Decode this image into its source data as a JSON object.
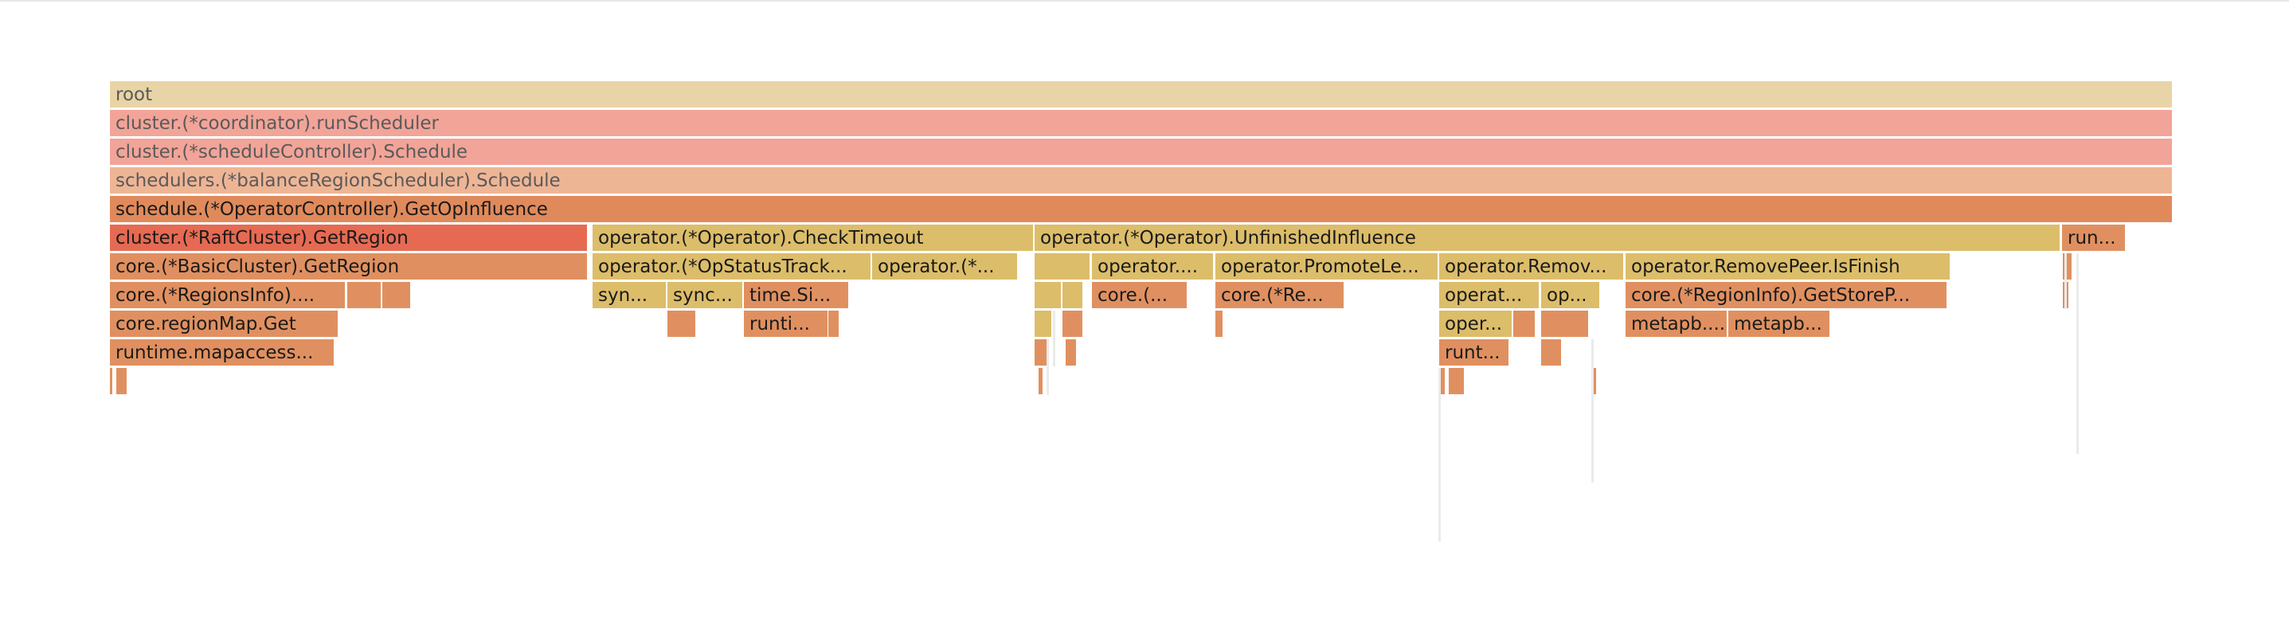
{
  "colors": {
    "root": "#e8d4a6",
    "salmon": "#f2a498",
    "peach": "#eeb595",
    "orange": "#e08a5c",
    "red": "#e66a52",
    "tan": "#e09060",
    "yellow": "#dcbd6a",
    "thin_line": "#ebebeb"
  },
  "flamegraph": {
    "frames": [
      {
        "label": "root",
        "color": "root",
        "dim": true
      },
      {
        "label": "cluster.(*coordinator).runScheduler",
        "color": "salmon",
        "dim": true
      },
      {
        "label": "cluster.(*scheduleController).Schedule",
        "color": "salmon",
        "dim": true
      },
      {
        "label": "schedulers.(*balanceRegionScheduler).Schedule",
        "color": "peach",
        "dim": true
      },
      {
        "label": "schedule.(*OperatorController).GetOpInfluence",
        "color": "orange"
      },
      {
        "label": "cluster.(*RaftCluster).GetRegion",
        "color": "red"
      },
      {
        "label": "operator.(*Operator).CheckTimeout",
        "color": "yellow"
      },
      {
        "label": "operator.(*Operator).UnfinishedInfluence",
        "color": "yellow"
      },
      {
        "label": "run...",
        "color": "tan"
      },
      {
        "label": "",
        "color": "tan"
      },
      {
        "label": "core.(*BasicCluster).GetRegion",
        "color": "tan"
      },
      {
        "label": "operator.(*OpStatusTrack...",
        "color": "yellow"
      },
      {
        "label": "operator.(*...",
        "color": "yellow"
      },
      {
        "label": "",
        "color": "yellow"
      },
      {
        "label": "operator....",
        "color": "yellow"
      },
      {
        "label": "operator.PromoteLe...",
        "color": "yellow"
      },
      {
        "label": "operator.Remov...",
        "color": "yellow"
      },
      {
        "label": "operator.RemovePeer.IsFinish",
        "color": "yellow"
      },
      {
        "label": "",
        "color": "tan"
      },
      {
        "label": "core.(*RegionsInfo)....",
        "color": "tan"
      },
      {
        "label": "",
        "color": "tan"
      },
      {
        "label": "",
        "color": "tan"
      },
      {
        "label": "syn...",
        "color": "yellow"
      },
      {
        "label": "sync...",
        "color": "yellow"
      },
      {
        "label": "time.Si...",
        "color": "tan"
      },
      {
        "label": "",
        "color": "yellow"
      },
      {
        "label": "",
        "color": "yellow"
      },
      {
        "label": "core.(...",
        "color": "tan"
      },
      {
        "label": "core.(*Re...",
        "color": "tan"
      },
      {
        "label": "operat...",
        "color": "yellow"
      },
      {
        "label": "op...",
        "color": "yellow"
      },
      {
        "label": "core.(*RegionInfo).GetStoreP...",
        "color": "tan"
      },
      {
        "label": "core.regionMap.Get",
        "color": "tan"
      },
      {
        "label": "",
        "color": "tan"
      },
      {
        "label": "runti...",
        "color": "tan"
      },
      {
        "label": "",
        "color": "tan"
      },
      {
        "label": "",
        "color": "yellow"
      },
      {
        "label": "",
        "color": "tan"
      },
      {
        "label": "",
        "color": "tan"
      },
      {
        "label": "oper...",
        "color": "yellow"
      },
      {
        "label": "",
        "color": "tan"
      },
      {
        "label": "",
        "color": "tan"
      },
      {
        "label": "metapb....",
        "color": "tan"
      },
      {
        "label": "metapb...",
        "color": "tan"
      },
      {
        "label": "runtime.mapaccess...",
        "color": "tan"
      },
      {
        "label": "",
        "color": "tan"
      },
      {
        "label": "",
        "color": "tan"
      },
      {
        "label": "runt...",
        "color": "tan"
      },
      {
        "label": "",
        "color": "tan"
      },
      {
        "label": "",
        "color": "tan"
      },
      {
        "label": "",
        "color": "tan"
      },
      {
        "label": "",
        "color": "tan"
      },
      {
        "label": "",
        "color": "tan"
      },
      {
        "label": "",
        "color": "tan"
      },
      {
        "label": "",
        "color": "tan"
      }
    ]
  }
}
